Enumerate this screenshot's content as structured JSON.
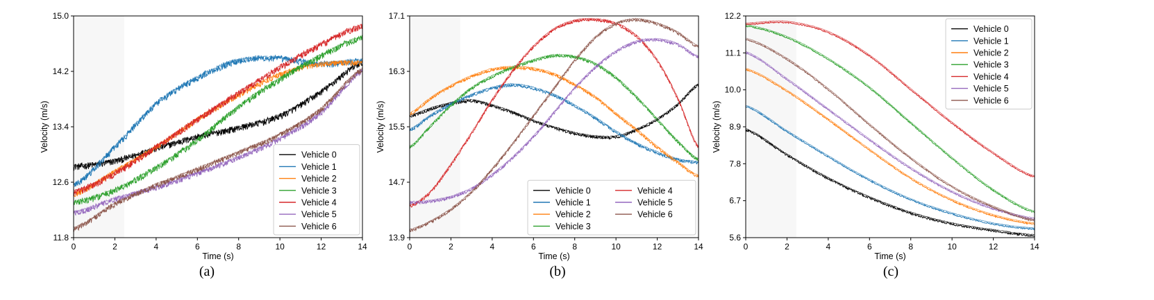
{
  "chart_data": [
    {
      "type": "line",
      "caption": "(a)",
      "xlabel": "Time (s)",
      "ylabel": "Velocity (m/s)",
      "xlim": [
        0,
        14
      ],
      "ylim": [
        11.8,
        15.0
      ],
      "xticks": [
        0,
        2,
        4,
        6,
        8,
        10,
        12,
        14
      ],
      "yticks": [
        11.8,
        12.6,
        13.4,
        14.2,
        15.0
      ],
      "ytick_labels": [
        "11.8",
        "12.6",
        "13.4",
        "14.2",
        "15.0"
      ],
      "shaded_region": [
        0,
        2.45
      ],
      "legend": {
        "position": "bottom-right",
        "columns": 1
      },
      "series": [
        {
          "name": "Vehicle 0",
          "color": "#000000",
          "x": [
            0,
            2,
            4,
            6,
            8,
            10,
            12,
            14
          ],
          "y": [
            12.82,
            12.9,
            13.08,
            13.25,
            13.38,
            13.55,
            13.9,
            14.32
          ],
          "noise": 0.05
        },
        {
          "name": "Vehicle 1",
          "color": "#1f77b4",
          "x": [
            0,
            2,
            4,
            6,
            8,
            10,
            12,
            14
          ],
          "y": [
            12.55,
            13.1,
            13.72,
            14.1,
            14.35,
            14.38,
            14.3,
            14.35
          ],
          "noise": 0.05
        },
        {
          "name": "Vehicle 2",
          "color": "#ff7f0e",
          "x": [
            0,
            2,
            4,
            6,
            8,
            10,
            12,
            14
          ],
          "y": [
            12.42,
            12.75,
            13.1,
            13.5,
            13.85,
            14.15,
            14.3,
            14.32
          ],
          "noise": 0.04
        },
        {
          "name": "Vehicle 3",
          "color": "#2ca02c",
          "x": [
            0,
            2,
            4,
            6,
            8,
            10,
            12,
            14
          ],
          "y": [
            12.3,
            12.48,
            12.8,
            13.2,
            13.68,
            14.08,
            14.42,
            14.68
          ],
          "noise": 0.05
        },
        {
          "name": "Vehicle 4",
          "color": "#d62728",
          "x": [
            0,
            2,
            4,
            6,
            8,
            10,
            12,
            14
          ],
          "y": [
            12.45,
            12.72,
            13.1,
            13.5,
            13.88,
            14.25,
            14.58,
            14.85
          ],
          "noise": 0.05
        },
        {
          "name": "Vehicle 5",
          "color": "#9467bd",
          "x": [
            0,
            2,
            4,
            6,
            8,
            10,
            12,
            14
          ],
          "y": [
            12.15,
            12.35,
            12.52,
            12.72,
            12.95,
            13.22,
            13.6,
            14.2
          ],
          "noise": 0.04
        },
        {
          "name": "Vehicle 6",
          "color": "#8c564b",
          "x": [
            0,
            2,
            4,
            6,
            8,
            10,
            12,
            14
          ],
          "y": [
            11.92,
            12.28,
            12.55,
            12.78,
            13.02,
            13.28,
            13.65,
            14.22
          ],
          "noise": 0.04
        }
      ]
    },
    {
      "type": "line",
      "caption": "(b)",
      "xlabel": "Time (s)",
      "ylabel": "Velocity (m/s)",
      "xlim": [
        0,
        14
      ],
      "ylim": [
        13.9,
        17.1
      ],
      "xticks": [
        0,
        2,
        4,
        6,
        8,
        10,
        12,
        14
      ],
      "yticks": [
        13.9,
        14.7,
        15.5,
        16.3,
        17.1
      ],
      "ytick_labels": [
        "13.9",
        "14.7",
        "15.5",
        "16.3",
        "17.1"
      ],
      "shaded_region": [
        0,
        2.45
      ],
      "legend": {
        "position": "bottom-right",
        "columns": 2
      },
      "series": [
        {
          "name": "Vehicle 0",
          "color": "#000000",
          "x": [
            0,
            1,
            2,
            3,
            4,
            5,
            6,
            7,
            8,
            9,
            10,
            11,
            12,
            13,
            14
          ],
          "y": [
            15.65,
            15.75,
            15.83,
            15.87,
            15.8,
            15.7,
            15.58,
            15.48,
            15.4,
            15.35,
            15.35,
            15.45,
            15.6,
            15.82,
            16.1
          ],
          "noise": 0.02
        },
        {
          "name": "Vehicle 1",
          "color": "#1f77b4",
          "x": [
            0,
            1,
            2,
            3,
            4,
            5,
            6,
            7,
            8,
            9,
            10,
            11,
            12,
            13,
            14
          ],
          "y": [
            15.45,
            15.65,
            15.82,
            15.95,
            16.05,
            16.1,
            16.05,
            15.95,
            15.8,
            15.62,
            15.42,
            15.25,
            15.12,
            15.02,
            14.98
          ],
          "noise": 0.02
        },
        {
          "name": "Vehicle 2",
          "color": "#ff7f0e",
          "x": [
            0,
            1,
            2,
            3,
            4,
            5,
            6,
            7,
            8,
            9,
            10,
            11,
            12,
            13,
            14
          ],
          "y": [
            15.68,
            15.9,
            16.08,
            16.22,
            16.32,
            16.35,
            16.33,
            16.25,
            16.1,
            15.92,
            15.68,
            15.45,
            15.2,
            14.98,
            14.78
          ],
          "noise": 0.02
        },
        {
          "name": "Vehicle 3",
          "color": "#2ca02c",
          "x": [
            0,
            1,
            2,
            3,
            4,
            5,
            6,
            7,
            8,
            9,
            10,
            11,
            12,
            13,
            14
          ],
          "y": [
            15.2,
            15.5,
            15.8,
            16.05,
            16.22,
            16.35,
            16.45,
            16.52,
            16.5,
            16.4,
            16.2,
            15.92,
            15.6,
            15.28,
            15.02
          ],
          "noise": 0.02
        },
        {
          "name": "Vehicle 4",
          "color": "#d62728",
          "x": [
            0,
            1,
            2,
            3,
            4,
            5,
            6,
            7,
            8,
            9,
            10,
            11,
            12,
            13,
            14
          ],
          "y": [
            14.35,
            14.55,
            14.95,
            15.4,
            15.88,
            16.3,
            16.65,
            16.9,
            17.02,
            17.04,
            16.98,
            16.8,
            16.45,
            15.9,
            15.2
          ],
          "noise": 0.02
        },
        {
          "name": "Vehicle 5",
          "color": "#9467bd",
          "x": [
            0,
            1,
            2,
            3,
            4,
            5,
            6,
            7,
            8,
            9,
            10,
            11,
            12,
            13,
            14
          ],
          "y": [
            14.4,
            14.42,
            14.48,
            14.6,
            14.8,
            15.05,
            15.35,
            15.7,
            16.05,
            16.35,
            16.58,
            16.72,
            16.75,
            16.68,
            16.5
          ],
          "noise": 0.02
        },
        {
          "name": "Vehicle 6",
          "color": "#8c564b",
          "x": [
            0,
            1,
            2,
            3,
            4,
            5,
            6,
            7,
            8,
            9,
            10,
            11,
            12,
            13,
            14
          ],
          "y": [
            14.0,
            14.12,
            14.3,
            14.55,
            14.88,
            15.25,
            15.65,
            16.05,
            16.45,
            16.78,
            16.98,
            17.04,
            16.98,
            16.85,
            16.65
          ],
          "noise": 0.02
        }
      ]
    },
    {
      "type": "line",
      "caption": "(c)",
      "xlabel": "Time (s)",
      "ylabel": "Velocity (m/s)",
      "xlim": [
        0,
        14
      ],
      "ylim": [
        5.6,
        12.2
      ],
      "xticks": [
        0,
        2,
        4,
        6,
        8,
        10,
        12,
        14
      ],
      "yticks": [
        5.6,
        6.7,
        7.8,
        8.9,
        10.0,
        11.1,
        12.2
      ],
      "ytick_labels": [
        "5.6",
        "6.7",
        "7.8",
        "8.9",
        "10.0",
        "11.1",
        "12.2"
      ],
      "shaded_region": [
        0,
        2.45
      ],
      "legend": {
        "position": "top-right",
        "columns": 1
      },
      "series": [
        {
          "name": "Vehicle 0",
          "color": "#000000",
          "x": [
            0,
            2,
            4,
            6,
            8,
            10,
            12,
            14
          ],
          "y": [
            8.8,
            8.05,
            7.35,
            6.78,
            6.32,
            6.0,
            5.8,
            5.65
          ],
          "noise": 0.03
        },
        {
          "name": "Vehicle 1",
          "color": "#1f77b4",
          "x": [
            0,
            2,
            4,
            6,
            8,
            10,
            12,
            14
          ],
          "y": [
            9.5,
            8.75,
            8.0,
            7.3,
            6.72,
            6.3,
            6.0,
            5.85
          ],
          "noise": 0.02
        },
        {
          "name": "Vehicle 2",
          "color": "#ff7f0e",
          "x": [
            0,
            2,
            4,
            6,
            8,
            10,
            12,
            14
          ],
          "y": [
            10.6,
            9.95,
            9.1,
            8.2,
            7.35,
            6.7,
            6.25,
            6.0
          ],
          "noise": 0.02
        },
        {
          "name": "Vehicle 3",
          "color": "#2ca02c",
          "x": [
            0,
            2,
            4,
            6,
            8,
            10,
            12,
            14
          ],
          "y": [
            11.9,
            11.55,
            10.9,
            10.05,
            9.0,
            7.95,
            7.0,
            6.35
          ],
          "noise": 0.02
        },
        {
          "name": "Vehicle 4",
          "color": "#d62728",
          "x": [
            0,
            2,
            4,
            6,
            8,
            10,
            12,
            14
          ],
          "y": [
            11.95,
            12.0,
            11.7,
            11.0,
            10.0,
            9.0,
            8.1,
            7.4
          ],
          "noise": 0.02
        },
        {
          "name": "Vehicle 5",
          "color": "#9467bd",
          "x": [
            0,
            2,
            4,
            6,
            8,
            10,
            12,
            14
          ],
          "y": [
            11.1,
            10.3,
            9.4,
            8.5,
            7.65,
            6.95,
            6.45,
            6.15
          ],
          "noise": 0.02
        },
        {
          "name": "Vehicle 6",
          "color": "#8c564b",
          "x": [
            0,
            2,
            4,
            6,
            8,
            10,
            12,
            14
          ],
          "y": [
            11.5,
            10.9,
            10.0,
            8.95,
            7.95,
            7.1,
            6.5,
            6.1
          ],
          "noise": 0.02
        }
      ]
    }
  ]
}
